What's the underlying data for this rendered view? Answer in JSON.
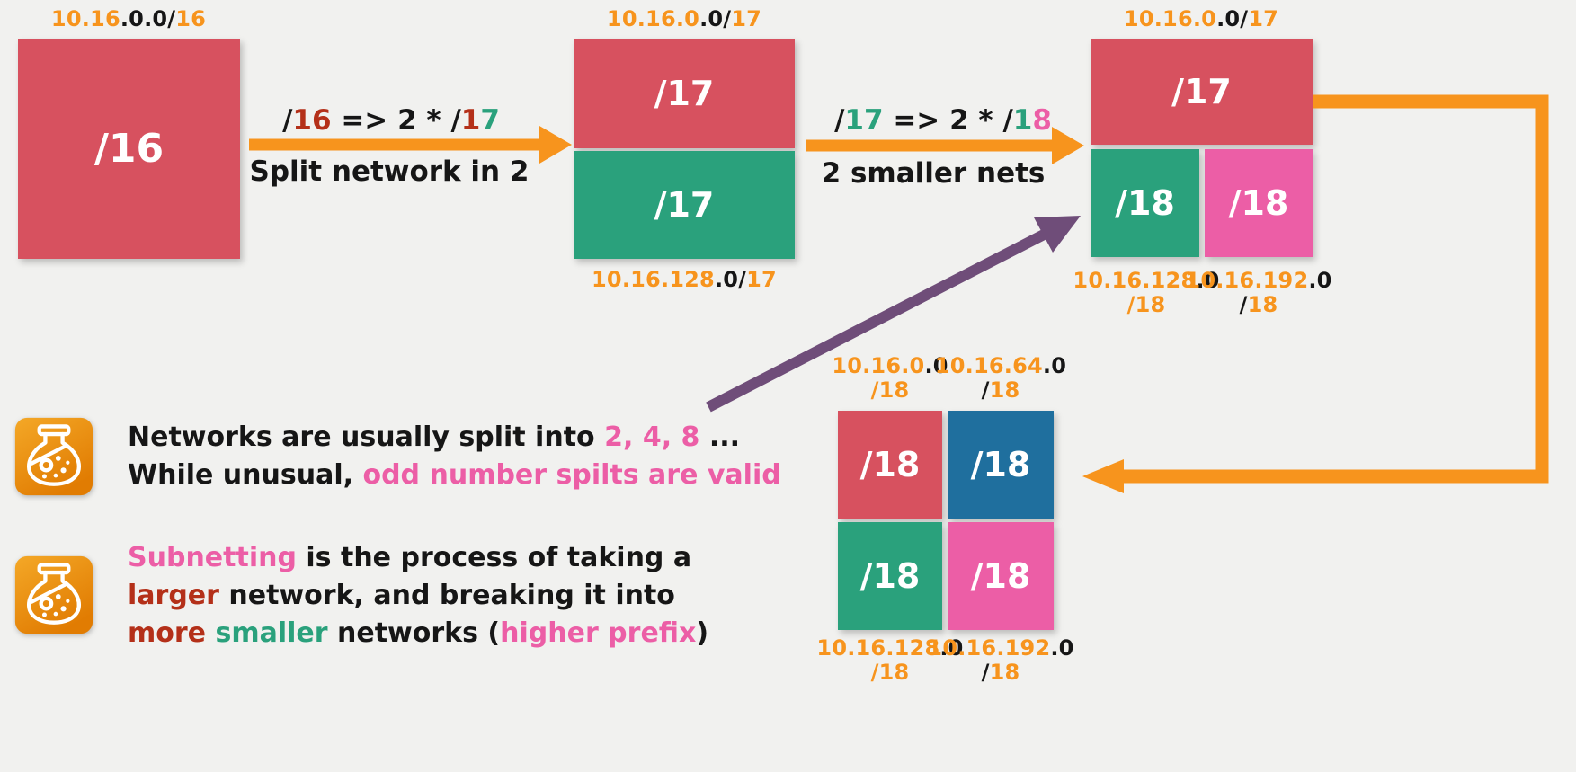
{
  "colors": {
    "background": "#f1f1ef",
    "red": "#d7515f",
    "green": "#2aa17c",
    "pink": "#ec5ea6",
    "blue": "#1f6f9e",
    "orange": "#f7941d",
    "darkred": "#b43019",
    "purple": "#6f4d79",
    "black": "#161616"
  },
  "diagram": {
    "stage1": {
      "address": [
        {
          "t": "10.16",
          "c": "orange"
        },
        {
          "t": ".0.0/",
          "c": "black"
        },
        {
          "t": "16",
          "c": "orange"
        }
      ],
      "box": "/16"
    },
    "arrow1": {
      "formula": [
        {
          "t": "/",
          "c": "black"
        },
        {
          "t": "16",
          "c": "darkred"
        },
        {
          "t": " => 2 * ",
          "c": "black"
        },
        {
          "t": "/",
          "c": "black"
        },
        {
          "t": "1",
          "c": "darkred"
        },
        {
          "t": "7",
          "c": "green"
        }
      ],
      "caption": "Split network in 2"
    },
    "stage2": {
      "address_top": [
        {
          "t": "10.16.0",
          "c": "orange"
        },
        {
          "t": ".0/",
          "c": "black"
        },
        {
          "t": "17",
          "c": "orange"
        }
      ],
      "box_top": "/17",
      "box_bottom": "/17",
      "address_bottom": [
        {
          "t": "10.16.128",
          "c": "orange"
        },
        {
          "t": ".0/",
          "c": "black"
        },
        {
          "t": "17",
          "c": "orange"
        }
      ]
    },
    "arrow2": {
      "formula": [
        {
          "t": "/",
          "c": "black"
        },
        {
          "t": "17",
          "c": "green"
        },
        {
          "t": " => 2 * ",
          "c": "black"
        },
        {
          "t": "/",
          "c": "black"
        },
        {
          "t": "1",
          "c": "green"
        },
        {
          "t": "8",
          "c": "pink"
        }
      ],
      "caption": "2 smaller nets"
    },
    "stage3": {
      "address_top": [
        {
          "t": "10.16.0",
          "c": "orange"
        },
        {
          "t": ".0/",
          "c": "black"
        },
        {
          "t": "17",
          "c": "orange"
        }
      ],
      "box_top": "/17",
      "box_left": "/18",
      "box_right": "/18",
      "label_left": {
        "line1": [
          {
            "t": "10.16.128",
            "c": "orange"
          },
          {
            "t": ".0",
            "c": "black"
          }
        ],
        "line2": [
          {
            "t": "/18",
            "c": "orange"
          }
        ]
      },
      "label_right": {
        "line1": [
          {
            "t": "10.16.192",
            "c": "orange"
          },
          {
            "t": ".0",
            "c": "black"
          }
        ],
        "line2": [
          {
            "t": "/",
            "c": "black"
          },
          {
            "t": "18",
            "c": "orange"
          }
        ]
      }
    },
    "stage4": {
      "label_tl": {
        "line1": [
          {
            "t": "10.16.0",
            "c": "orange"
          },
          {
            "t": ".0",
            "c": "black"
          }
        ],
        "line2": [
          {
            "t": "/18",
            "c": "orange"
          }
        ]
      },
      "label_tr": {
        "line1": [
          {
            "t": "10.16.64",
            "c": "orange"
          },
          {
            "t": ".0",
            "c": "black"
          }
        ],
        "line2": [
          {
            "t": "/",
            "c": "black"
          },
          {
            "t": "18",
            "c": "orange"
          }
        ]
      },
      "box_tl": "/18",
      "box_tr": "/18",
      "box_bl": "/18",
      "box_br": "/18",
      "label_bl": {
        "line1": [
          {
            "t": "10.16.128",
            "c": "orange"
          },
          {
            "t": ".0",
            "c": "black"
          }
        ],
        "line2": [
          {
            "t": "/18",
            "c": "orange"
          }
        ]
      },
      "label_br": {
        "line1": [
          {
            "t": "10.16.192",
            "c": "orange"
          },
          {
            "t": ".0",
            "c": "black"
          }
        ],
        "line2": [
          {
            "t": "/",
            "c": "black"
          },
          {
            "t": "18",
            "c": "orange"
          }
        ]
      }
    }
  },
  "notes": [
    {
      "icon": "flask-icon",
      "lines": [
        [
          {
            "t": "Networks are usually split into ",
            "c": "black"
          },
          {
            "t": "2, 4, 8",
            "c": "pink"
          },
          {
            "t": " ...",
            "c": "black"
          }
        ],
        [
          {
            "t": "While unusual, ",
            "c": "black"
          },
          {
            "t": "odd number spilts are valid",
            "c": "pink"
          }
        ]
      ]
    },
    {
      "icon": "flask-icon",
      "lines": [
        [
          {
            "t": "Subnetting",
            "c": "pink"
          },
          {
            "t": " is the process of taking a",
            "c": "black"
          }
        ],
        [
          {
            "t": "larger",
            "c": "darkred"
          },
          {
            "t": " network, and breaking it into",
            "c": "black"
          }
        ],
        [
          {
            "t": "more",
            "c": "darkred"
          },
          {
            "t": " ",
            "c": "black"
          },
          {
            "t": "smaller",
            "c": "green"
          },
          {
            "t": " networks (",
            "c": "black"
          },
          {
            "t": "higher prefix",
            "c": "pink"
          },
          {
            "t": ")",
            "c": "black"
          }
        ]
      ]
    }
  ]
}
